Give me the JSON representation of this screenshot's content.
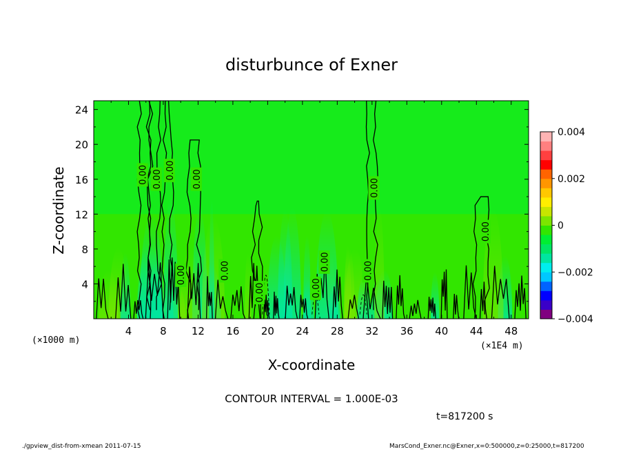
{
  "chart_data": {
    "type": "heatmap",
    "title": "disturbunce of Exner",
    "xlabel": "X-coordinate",
    "ylabel": "Z-coordinate",
    "x_unit_left": "(×1000 m)",
    "x_unit_right": "(×1E4 m)",
    "xlim": [
      0,
      50
    ],
    "ylim": [
      0,
      25
    ],
    "x_ticks": [
      4,
      8,
      12,
      16,
      20,
      24,
      28,
      32,
      36,
      40,
      44,
      48
    ],
    "y_ticks": [
      4,
      8,
      12,
      16,
      20,
      24
    ],
    "colorbar": {
      "range": [
        -0.004,
        0.004
      ],
      "tick_values": [
        0.004,
        0.002,
        0,
        -0.002,
        -0.004
      ],
      "tick_labels": [
        "0.004",
        "0.002",
        "0",
        "−0.002",
        "−0.004"
      ],
      "colors": [
        "#800080",
        "#3a00c8",
        "#0000ff",
        "#0064ff",
        "#00c8ff",
        "#00eeee",
        "#00e6a0",
        "#00e664",
        "#00ee32",
        "#32e600",
        "#7de600",
        "#c8e600",
        "#ffee00",
        "#ffc800",
        "#ff9600",
        "#ff6400",
        "#ff0000",
        "#ff4040",
        "#ff8080",
        "#ffb4b4"
      ]
    },
    "contour_labels": [
      {
        "text": "0.00",
        "x": 5.6,
        "z": 16.5
      },
      {
        "text": "0.00",
        "x": 7.2,
        "z": 16.0
      },
      {
        "text": "0.00",
        "x": 8.7,
        "z": 17.0
      },
      {
        "text": "0.00",
        "x": 11.8,
        "z": 16.0
      },
      {
        "text": "0.00",
        "x": 32.2,
        "z": 15.0
      },
      {
        "text": "0.00",
        "x": 45.0,
        "z": 10.0
      },
      {
        "text": "0.00",
        "x": 10.0,
        "z": 5.0
      },
      {
        "text": "0.00",
        "x": 15.0,
        "z": 5.5
      },
      {
        "text": "0.00",
        "x": 19.0,
        "z": 3.0
      },
      {
        "text": "0.00",
        "x": 25.5,
        "z": 3.5
      },
      {
        "text": "0.00",
        "x": 26.5,
        "z": 6.5
      },
      {
        "text": "0.00",
        "x": 31.5,
        "z": 5.5
      }
    ],
    "contour_interval_text": "CONTOUR INTERVAL = 1.000E-03",
    "time_text": "t=817200 s"
  },
  "footer": {
    "left": "./gpview_dist-from-xmean   2011-07-15",
    "right": "MarsCond_Exner.nc@Exner,x=0:500000,z=0:25000,t=817200"
  }
}
